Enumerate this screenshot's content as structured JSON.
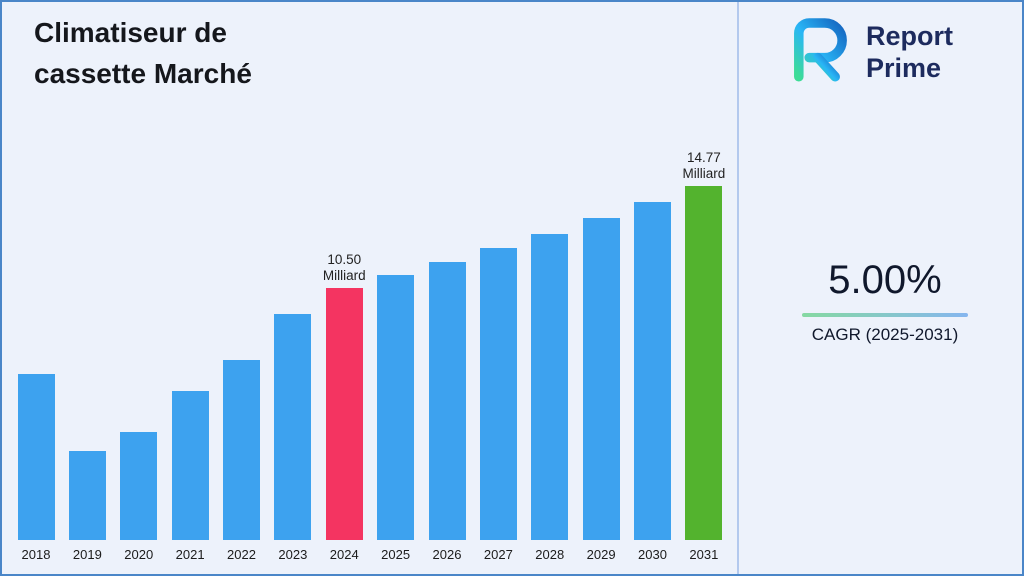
{
  "header": {
    "title_lines": [
      "Climatiseur de",
      "cassette Marché"
    ]
  },
  "logo": {
    "name_line1": "Report",
    "name_line2": "Prime"
  },
  "cagr": {
    "value": "5.00%",
    "label": "CAGR (2025-2031)"
  },
  "colors": {
    "page_background": "#edf2fb",
    "page_border": "#4a86c8",
    "underline_start": "#86d9a2",
    "underline_end": "#86b6ef",
    "logo_navy": "#1d2b5e"
  },
  "chart_data": {
    "type": "bar",
    "title": "Climatiseur de cassette Marché",
    "unit": "Milliard",
    "categories": [
      "2018",
      "2019",
      "2020",
      "2021",
      "2022",
      "2023",
      "2024",
      "2025",
      "2026",
      "2027",
      "2028",
      "2029",
      "2030",
      "2031"
    ],
    "values": [
      6.9,
      3.7,
      4.5,
      6.2,
      7.5,
      9.4,
      10.5,
      11.03,
      11.58,
      12.16,
      12.76,
      13.4,
      14.07,
      14.77
    ],
    "ylim": [
      0,
      15.5
    ],
    "grid": false,
    "legend": "none",
    "bar_color_default": "#3DA2EF",
    "bar_color_highlights": {
      "2024": "#F43461",
      "2031": "#53B32E"
    },
    "annotations": [
      {
        "category": "2024",
        "value_text": "10.50",
        "unit_text": "Milliard"
      },
      {
        "category": "2031",
        "value_text": "14.77",
        "unit_text": "Milliard"
      }
    ]
  }
}
